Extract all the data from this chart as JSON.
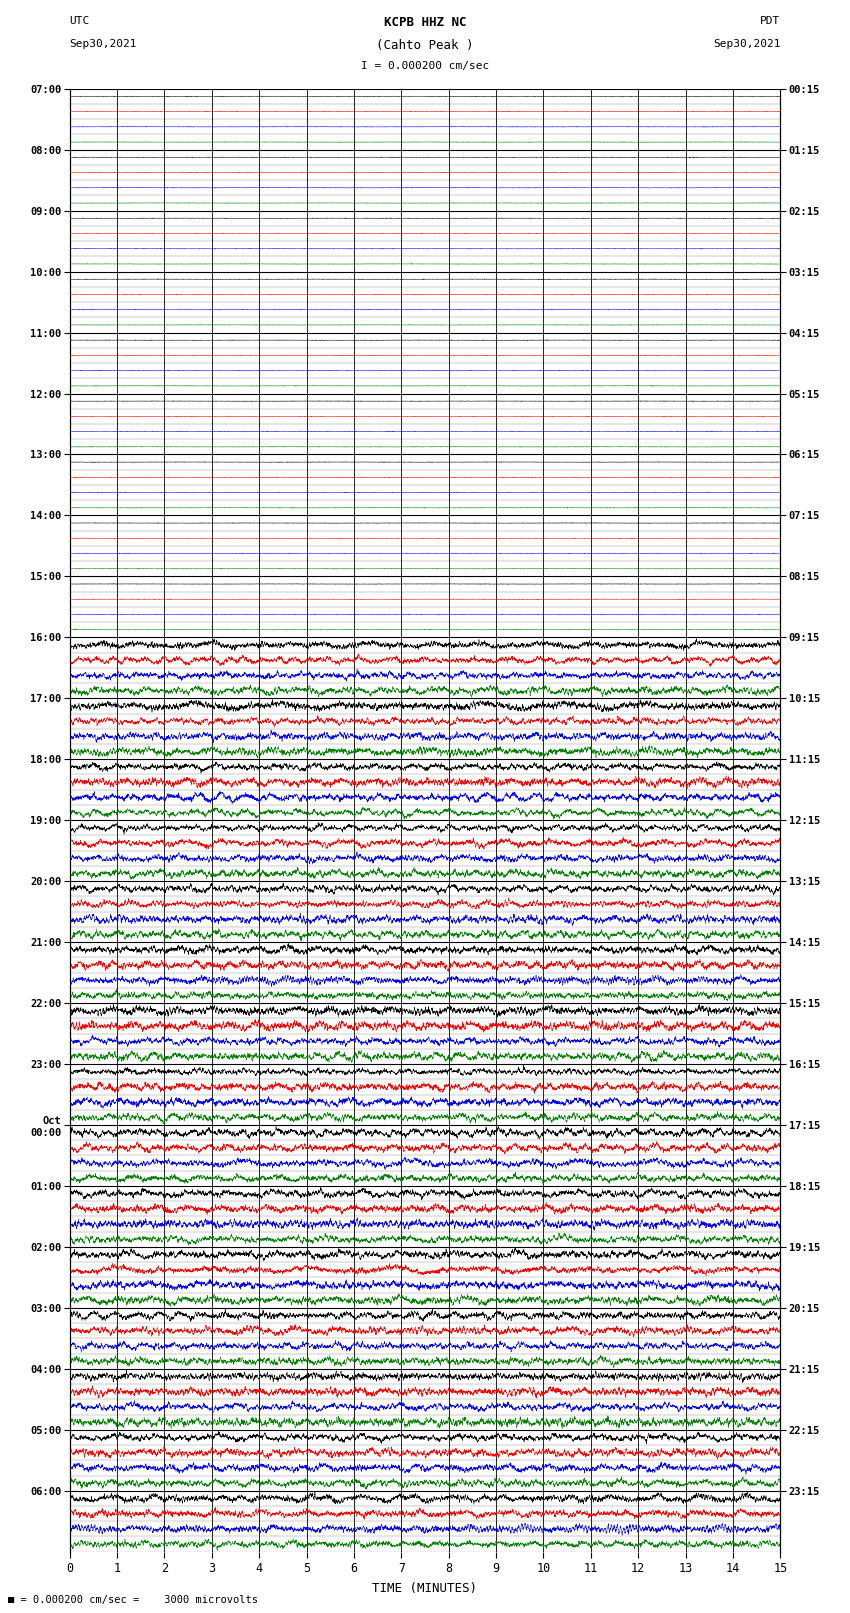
{
  "title_line1": "KCPB HHZ NC",
  "title_line2": "(Cahto Peak )",
  "scale_label": "I = 0.000200 cm/sec",
  "left_header": "UTC",
  "left_date": "Sep30,2021",
  "right_header": "PDT",
  "right_date": "Sep30,2021",
  "bottom_label": "TIME (MINUTES)",
  "bottom_note": "= 0.000200 cm/sec =    3000 microvolts",
  "utc_times": [
    "07:00",
    "08:00",
    "09:00",
    "10:00",
    "11:00",
    "12:00",
    "13:00",
    "14:00",
    "15:00",
    "16:00",
    "17:00",
    "18:00",
    "19:00",
    "20:00",
    "21:00",
    "22:00",
    "23:00",
    "Oct\n00:00",
    "01:00",
    "02:00",
    "03:00",
    "04:00",
    "05:00",
    "06:00"
  ],
  "pdt_times": [
    "00:15",
    "01:15",
    "02:15",
    "03:15",
    "04:15",
    "05:15",
    "06:15",
    "07:15",
    "08:15",
    "09:15",
    "10:15",
    "11:15",
    "12:15",
    "13:15",
    "14:15",
    "15:15",
    "16:15",
    "17:15",
    "18:15",
    "19:15",
    "20:15",
    "21:15",
    "22:15",
    "23:15"
  ],
  "num_hours": 24,
  "subtracks_per_hour": 4,
  "quiet_hours": 9,
  "colors_cycle": [
    "#000000",
    "#ff0000",
    "#0000ff",
    "#008000"
  ],
  "figsize": [
    8.5,
    16.13
  ],
  "dpi": 100,
  "bg_color": "#ffffff",
  "major_grid_color": "#000000",
  "minor_grid_color": "#888888",
  "quiet_amp": 0.04,
  "active_amp": 0.42,
  "xlabel": "TIME (MINUTES)",
  "x_ticks": [
    0,
    1,
    2,
    3,
    4,
    5,
    6,
    7,
    8,
    9,
    10,
    11,
    12,
    13,
    14,
    15
  ],
  "x_min": 0,
  "x_max": 15,
  "N_samples": 4000
}
